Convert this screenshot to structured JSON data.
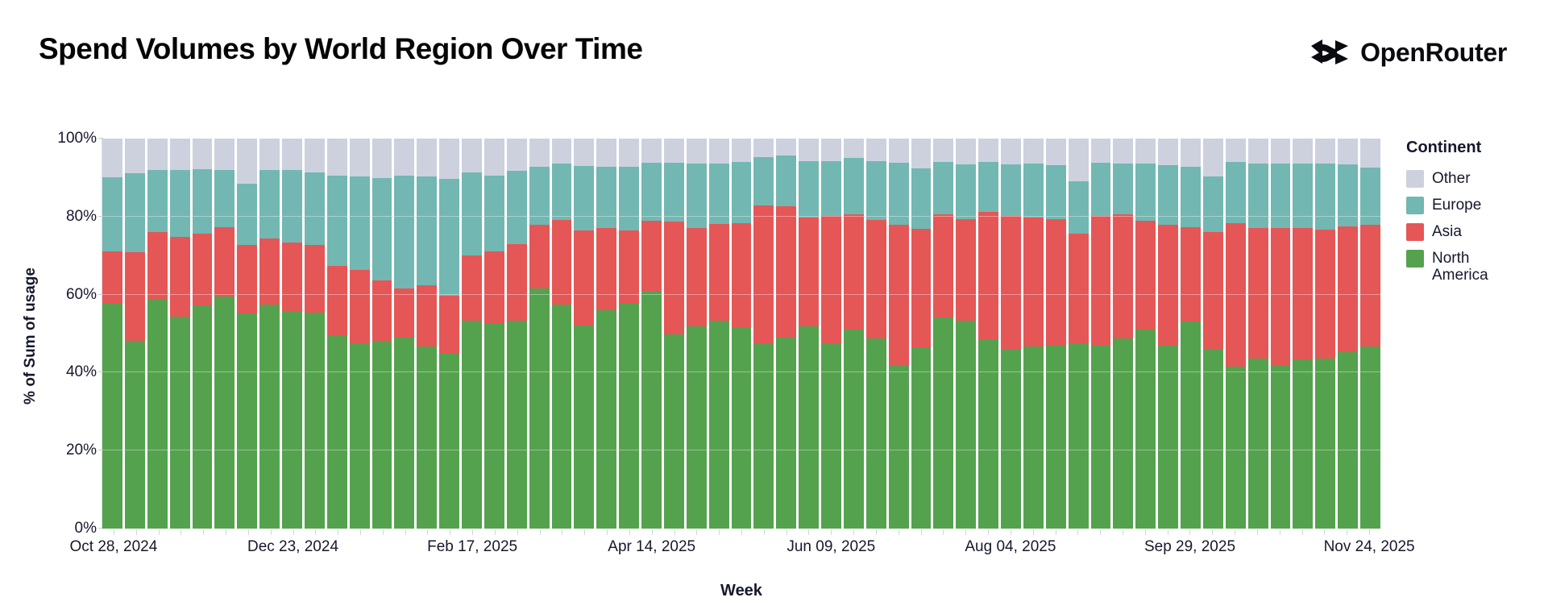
{
  "header": {
    "title": "Spend Volumes by World Region Over Time",
    "brand": "OpenRouter"
  },
  "legend": {
    "title": "Continent",
    "items": [
      {
        "label": "Other",
        "color": "#cdd1de"
      },
      {
        "label": "Europe",
        "color": "#72b7b2"
      },
      {
        "label": "Asia",
        "color": "#e45756"
      },
      {
        "label": "North America",
        "color": "#55a24e"
      }
    ]
  },
  "axes": {
    "x_title": "Week",
    "y_title": "% of Sum of usage"
  },
  "chart_data": {
    "type": "bar",
    "stacked": true,
    "normalized": true,
    "title": "Spend Volumes by World Region Over Time",
    "xlabel": "Week",
    "ylabel": "% of Sum of usage",
    "ylim": [
      0,
      100
    ],
    "grid": true,
    "legend_position": "right",
    "y_ticks": [
      "0%",
      "20%",
      "40%",
      "60%",
      "80%",
      "100%"
    ],
    "x_tick_labels": [
      "Oct 28, 2024",
      "Dec 23, 2024",
      "Feb 17, 2025",
      "Apr 14, 2025",
      "Jun 09, 2025",
      "Aug 04, 2025",
      "Sep 29, 2025",
      "Nov 24, 2025"
    ],
    "x_tick_indices": [
      0,
      8,
      16,
      24,
      32,
      40,
      48,
      56
    ],
    "categories": [
      "Oct 28, 2024",
      "Nov 04, 2024",
      "Nov 11, 2024",
      "Nov 18, 2024",
      "Nov 25, 2024",
      "Dec 02, 2024",
      "Dec 09, 2024",
      "Dec 16, 2024",
      "Dec 23, 2024",
      "Dec 30, 2024",
      "Jan 06, 2025",
      "Jan 13, 2025",
      "Jan 20, 2025",
      "Jan 27, 2025",
      "Feb 03, 2025",
      "Feb 10, 2025",
      "Feb 17, 2025",
      "Feb 24, 2025",
      "Mar 03, 2025",
      "Mar 10, 2025",
      "Mar 17, 2025",
      "Mar 24, 2025",
      "Mar 31, 2025",
      "Apr 07, 2025",
      "Apr 14, 2025",
      "Apr 21, 2025",
      "Apr 28, 2025",
      "May 05, 2025",
      "May 12, 2025",
      "May 19, 2025",
      "May 26, 2025",
      "Jun 02, 2025",
      "Jun 09, 2025",
      "Jun 16, 2025",
      "Jun 23, 2025",
      "Jun 30, 2025",
      "Jul 07, 2025",
      "Jul 14, 2025",
      "Jul 21, 2025",
      "Jul 28, 2025",
      "Aug 04, 2025",
      "Aug 11, 2025",
      "Aug 18, 2025",
      "Aug 25, 2025",
      "Sep 01, 2025",
      "Sep 08, 2025",
      "Sep 15, 2025",
      "Sep 22, 2025",
      "Sep 29, 2025",
      "Oct 06, 2025",
      "Oct 13, 2025",
      "Oct 20, 2025",
      "Oct 27, 2025",
      "Nov 03, 2025",
      "Nov 10, 2025",
      "Nov 17, 2025",
      "Nov 24, 2025"
    ],
    "series": [
      {
        "name": "North America",
        "color": "#55a24e",
        "values": [
          57.6,
          48.1,
          58.8,
          54.3,
          57.3,
          59.6,
          55.1,
          57.4,
          55.6,
          55.3,
          49.4,
          47.6,
          48.2,
          48.9,
          46.6,
          44.9,
          53.3,
          52.7,
          53.3,
          61.6,
          57.5,
          52.1,
          55.9,
          57.6,
          60.7,
          49.7,
          51.9,
          53.3,
          51.6,
          47.5,
          49.0,
          51.8,
          47.6,
          51.1,
          48.7,
          41.9,
          46.4,
          54.2,
          53.3,
          48.5,
          45.8,
          46.7,
          46.9,
          47.6,
          46.9,
          48.8,
          51.1,
          46.9,
          53.1,
          46.0,
          41.6,
          43.5,
          41.9,
          43.3,
          43.5,
          45.3,
          46.7
        ]
      },
      {
        "name": "Asia",
        "color": "#e45756",
        "values": [
          13.4,
          22.8,
          17.2,
          20.5,
          18.3,
          17.6,
          17.6,
          17.0,
          17.7,
          17.4,
          17.9,
          18.8,
          15.4,
          12.7,
          15.9,
          14.9,
          16.7,
          18.3,
          19.6,
          16.2,
          21.7,
          24.3,
          21.2,
          18.8,
          18.3,
          29.0,
          25.1,
          24.9,
          26.7,
          35.3,
          33.7,
          27.9,
          32.5,
          29.4,
          30.5,
          35.9,
          30.4,
          26.3,
          26.1,
          32.6,
          34.3,
          33.0,
          32.5,
          28.0,
          33.2,
          31.7,
          27.9,
          31.1,
          24.1,
          30.1,
          36.7,
          33.5,
          35.2,
          33.7,
          33.1,
          32.1,
          31.1
        ]
      },
      {
        "name": "Europe",
        "color": "#72b7b2",
        "values": [
          19.0,
          20.3,
          16.0,
          17.2,
          16.6,
          14.8,
          15.7,
          17.5,
          18.7,
          18.7,
          23.1,
          23.8,
          26.3,
          29.0,
          27.7,
          29.8,
          21.4,
          19.5,
          18.9,
          15.0,
          14.5,
          16.6,
          15.7,
          16.4,
          14.9,
          15.2,
          16.5,
          15.5,
          15.8,
          12.4,
          12.9,
          14.5,
          14.2,
          14.5,
          15.0,
          16.1,
          15.5,
          13.6,
          14.0,
          13.0,
          13.3,
          13.8,
          13.8,
          13.4,
          13.8,
          13.2,
          14.7,
          15.2,
          15.6,
          14.3,
          15.8,
          16.5,
          16.6,
          16.7,
          17.1,
          16.0,
          14.7
        ]
      },
      {
        "name": "Other",
        "color": "#cdd1de",
        "values": [
          10.0,
          8.8,
          8.0,
          8.0,
          7.8,
          8.0,
          11.6,
          8.1,
          8.0,
          8.6,
          9.6,
          9.8,
          10.1,
          9.4,
          9.8,
          10.4,
          8.6,
          9.5,
          8.2,
          7.2,
          6.3,
          7.0,
          7.2,
          7.2,
          6.1,
          6.1,
          6.5,
          6.3,
          5.9,
          4.8,
          4.4,
          5.8,
          5.7,
          5.0,
          5.8,
          6.1,
          7.7,
          5.9,
          6.6,
          5.9,
          6.6,
          6.5,
          6.8,
          11.0,
          6.1,
          6.3,
          6.3,
          6.8,
          7.2,
          9.6,
          5.9,
          6.5,
          6.3,
          6.3,
          6.3,
          6.6,
          7.5
        ]
      }
    ]
  }
}
